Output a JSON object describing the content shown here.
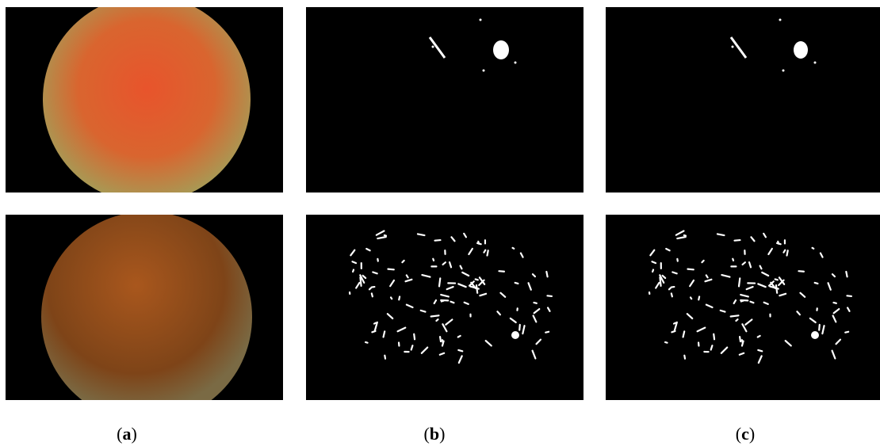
{
  "figure": {
    "captions": [
      {
        "open": "(",
        "letter": "a",
        "close": ")"
      },
      {
        "open": "(",
        "letter": "b",
        "close": ")"
      },
      {
        "open": "(",
        "letter": "c",
        "close": ")"
      }
    ]
  }
}
